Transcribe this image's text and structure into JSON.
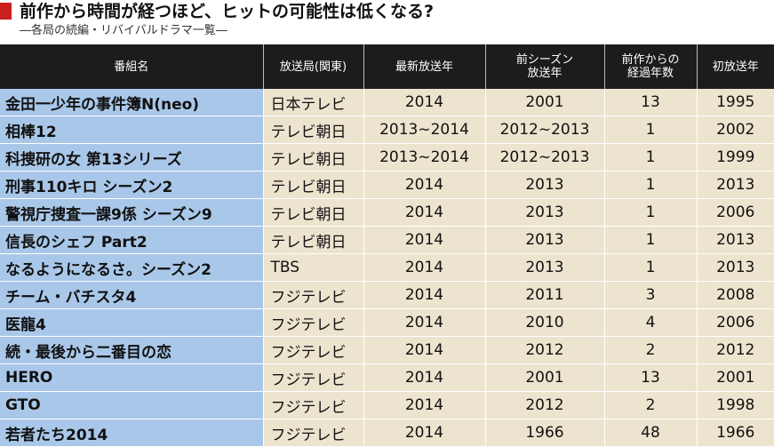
{
  "title": "前作から時間が経つほど、ヒットの可能性は低くなる?",
  "subtitle": "―各局の続編・リバイバルドラマ一覧―",
  "columns": {
    "name": "番組名",
    "station": "放送局(関東)",
    "latest": "最新放送年",
    "prev_line1": "前シーズン",
    "prev_line2": "放送年",
    "elapsed_line1": "前作からの",
    "elapsed_line2": "経過年数",
    "first": "初放送年"
  },
  "rows": [
    {
      "name": "金田一少年の事件簿N(neo)",
      "station": "日本テレビ",
      "latest": "2014",
      "prev": "2001",
      "elapsed": "13",
      "first": "1995"
    },
    {
      "name": "相棒12",
      "station": "テレビ朝日",
      "latest": "2013~2014",
      "prev": "2012~2013",
      "elapsed": "1",
      "first": "2002"
    },
    {
      "name": "科捜研の女 第13シリーズ",
      "station": "テレビ朝日",
      "latest": "2013~2014",
      "prev": "2012~2013",
      "elapsed": "1",
      "first": "1999"
    },
    {
      "name": "刑事110キロ シーズン2",
      "station": "テレビ朝日",
      "latest": "2014",
      "prev": "2013",
      "elapsed": "1",
      "first": "2013"
    },
    {
      "name": "警視庁捜査一課9係 シーズン9",
      "station": "テレビ朝日",
      "latest": "2014",
      "prev": "2013",
      "elapsed": "1",
      "first": "2006"
    },
    {
      "name": "信長のシェフ Part2",
      "station": "テレビ朝日",
      "latest": "2014",
      "prev": "2013",
      "elapsed": "1",
      "first": "2013"
    },
    {
      "name": "なるようになるさ。シーズン2",
      "station": "TBS",
      "latest": "2014",
      "prev": "2013",
      "elapsed": "1",
      "first": "2013"
    },
    {
      "name": "チーム・バチスタ4",
      "station": "フジテレビ",
      "latest": "2014",
      "prev": "2011",
      "elapsed": "3",
      "first": "2008"
    },
    {
      "name": "医龍4",
      "station": "フジテレビ",
      "latest": "2014",
      "prev": "2010",
      "elapsed": "4",
      "first": "2006"
    },
    {
      "name": "続・最後から二番目の恋",
      "station": "フジテレビ",
      "latest": "2014",
      "prev": "2012",
      "elapsed": "2",
      "first": "2012"
    },
    {
      "name": "HERO",
      "station": "フジテレビ",
      "latest": "2014",
      "prev": "2001",
      "elapsed": "13",
      "first": "2001"
    },
    {
      "name": "GTO",
      "station": "フジテレビ",
      "latest": "2014",
      "prev": "2012",
      "elapsed": "2",
      "first": "1998"
    },
    {
      "name": "若者たち2014",
      "station": "フジテレビ",
      "latest": "2014",
      "prev": "1966",
      "elapsed": "48",
      "first": "1966"
    }
  ],
  "colors": {
    "accent": "#cc1f1f",
    "header_bg": "#1c1c1c",
    "name_cell": "#a9c8e9",
    "data_cell": "#ede4cf"
  }
}
